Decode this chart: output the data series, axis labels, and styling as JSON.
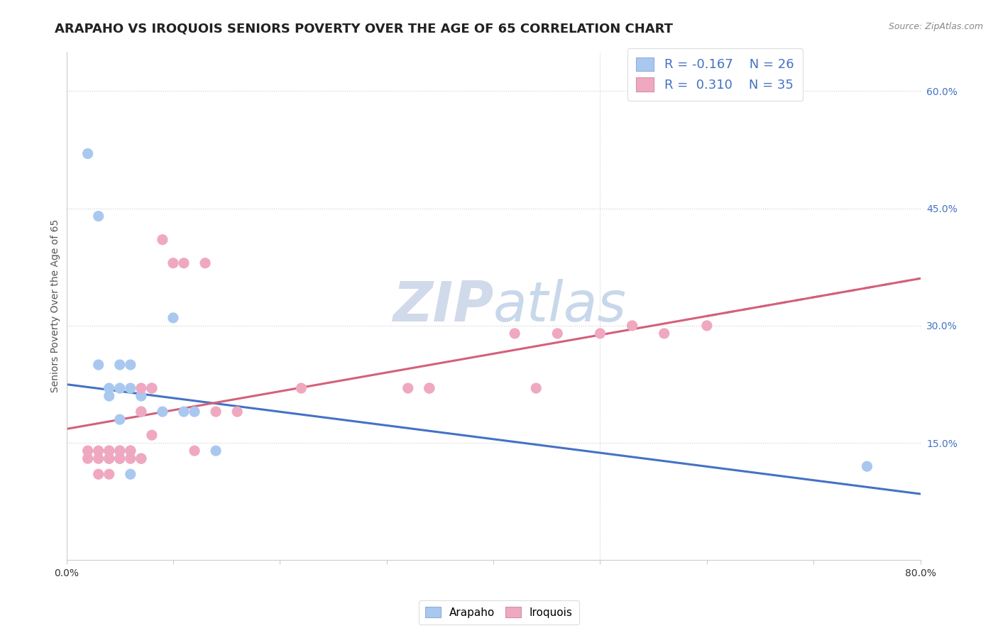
{
  "title": "ARAPAHO VS IROQUOIS SENIORS POVERTY OVER THE AGE OF 65 CORRELATION CHART",
  "source_text": "Source: ZipAtlas.com",
  "ylabel": "Seniors Poverty Over the Age of 65",
  "xlim": [
    0.0,
    0.8
  ],
  "ylim": [
    0.0,
    0.65
  ],
  "xticks": [
    0.0,
    0.1,
    0.2,
    0.3,
    0.4,
    0.5,
    0.6,
    0.7,
    0.8
  ],
  "xticklabels": [
    "0.0%",
    "",
    "",
    "",
    "",
    "",
    "",
    "",
    "80.0%"
  ],
  "yticks_right": [
    0.15,
    0.3,
    0.45,
    0.6
  ],
  "ytick_labels_right": [
    "15.0%",
    "30.0%",
    "45.0%",
    "60.0%"
  ],
  "grid_yticks": [
    0.15,
    0.3,
    0.45,
    0.6
  ],
  "arapaho_x": [
    0.02,
    0.03,
    0.03,
    0.04,
    0.04,
    0.04,
    0.04,
    0.05,
    0.05,
    0.05,
    0.05,
    0.05,
    0.06,
    0.06,
    0.06,
    0.06,
    0.07,
    0.07,
    0.07,
    0.08,
    0.09,
    0.1,
    0.11,
    0.12,
    0.14,
    0.75
  ],
  "arapaho_y": [
    0.52,
    0.44,
    0.25,
    0.21,
    0.22,
    0.14,
    0.13,
    0.25,
    0.22,
    0.18,
    0.14,
    0.13,
    0.25,
    0.22,
    0.14,
    0.11,
    0.21,
    0.19,
    0.13,
    0.22,
    0.19,
    0.31,
    0.19,
    0.19,
    0.14,
    0.12
  ],
  "iroquois_x": [
    0.02,
    0.02,
    0.03,
    0.03,
    0.03,
    0.04,
    0.04,
    0.04,
    0.05,
    0.05,
    0.06,
    0.06,
    0.07,
    0.07,
    0.07,
    0.08,
    0.08,
    0.09,
    0.1,
    0.11,
    0.12,
    0.13,
    0.14,
    0.16,
    0.22,
    0.32,
    0.34,
    0.34,
    0.42,
    0.44,
    0.46,
    0.5,
    0.53,
    0.56,
    0.6
  ],
  "iroquois_y": [
    0.14,
    0.13,
    0.14,
    0.13,
    0.11,
    0.14,
    0.13,
    0.11,
    0.14,
    0.13,
    0.14,
    0.13,
    0.22,
    0.19,
    0.13,
    0.22,
    0.16,
    0.41,
    0.38,
    0.38,
    0.14,
    0.38,
    0.19,
    0.19,
    0.22,
    0.22,
    0.22,
    0.22,
    0.29,
    0.22,
    0.29,
    0.29,
    0.3,
    0.29,
    0.3
  ],
  "arapaho_color": "#a8c8f0",
  "iroquois_color": "#f0a8c0",
  "arapaho_line_color": "#4472c4",
  "iroquois_line_color": "#d4607a",
  "legend_R_arapaho": "R = -0.167",
  "legend_N_arapaho": "N = 26",
  "legend_R_iroquois": "R =  0.310",
  "legend_N_iroquois": "N = 35",
  "watermark_zip": "ZIP",
  "watermark_atlas": "atlas",
  "watermark_color_zip": "#c0cfe8",
  "watermark_color_atlas": "#b8cce0",
  "title_fontsize": 13,
  "axis_label_fontsize": 10,
  "tick_fontsize": 10,
  "legend_fontsize": 12
}
